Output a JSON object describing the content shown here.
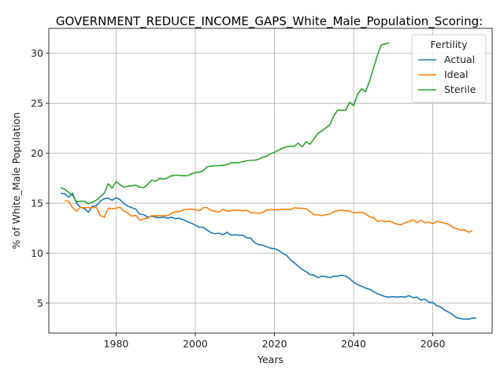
{
  "chart_data": {
    "type": "line",
    "title": "GOVERNMENT_REDUCE_INCOME_GAPS_White_Male_Population_Scoring:",
    "xlabel": "Years",
    "ylabel": "% of White_Male Population",
    "xlim": [
      1963,
      2075
    ],
    "ylim": [
      2,
      32.5
    ],
    "xticks": [
      1980,
      2000,
      2020,
      2040,
      2060
    ],
    "yticks": [
      5,
      10,
      15,
      20,
      25,
      30
    ],
    "grid": true,
    "legend": {
      "title": "Fertility",
      "position": "top-right"
    },
    "series": [
      {
        "name": "Actual",
        "color": "#1f77b4",
        "points": [
          [
            1966,
            16.0
          ],
          [
            1967,
            15.95
          ],
          [
            1968,
            15.6
          ],
          [
            1969,
            16.0
          ],
          [
            1970,
            15.0
          ],
          [
            1971,
            14.6
          ],
          [
            1972,
            14.45
          ],
          [
            1973,
            14.1
          ],
          [
            1974,
            14.7
          ],
          [
            1975,
            14.75
          ],
          [
            1976,
            15.2
          ],
          [
            1977,
            15.45
          ],
          [
            1978,
            15.5
          ],
          [
            1979,
            15.3
          ],
          [
            1980,
            15.55
          ],
          [
            1981,
            15.35
          ],
          [
            1982,
            14.95
          ],
          [
            1983,
            14.7
          ],
          [
            1984,
            14.55
          ],
          [
            1985,
            14.4
          ],
          [
            1986,
            13.9
          ],
          [
            1987,
            13.85
          ],
          [
            1988,
            13.6
          ],
          [
            1989,
            13.7
          ],
          [
            1990,
            13.6
          ],
          [
            1991,
            13.55
          ],
          [
            1992,
            13.6
          ],
          [
            1993,
            13.5
          ],
          [
            1994,
            13.6
          ],
          [
            1995,
            13.45
          ],
          [
            1996,
            13.5
          ],
          [
            1997,
            13.35
          ],
          [
            1998,
            13.15
          ],
          [
            1999,
            13.0
          ],
          [
            2000,
            12.8
          ],
          [
            2001,
            12.6
          ],
          [
            2002,
            12.6
          ],
          [
            2003,
            12.3
          ],
          [
            2004,
            12.05
          ],
          [
            2005,
            11.95
          ],
          [
            2006,
            12.0
          ],
          [
            2007,
            11.85
          ],
          [
            2008,
            12.1
          ],
          [
            2009,
            11.8
          ],
          [
            2010,
            11.85
          ],
          [
            2011,
            11.8
          ],
          [
            2012,
            11.8
          ],
          [
            2013,
            11.55
          ],
          [
            2014,
            11.5
          ],
          [
            2015,
            11.05
          ],
          [
            2016,
            10.85
          ],
          [
            2017,
            10.8
          ],
          [
            2018,
            10.65
          ],
          [
            2019,
            10.5
          ],
          [
            2020,
            10.45
          ],
          [
            2021,
            10.3
          ],
          [
            2022,
            10.0
          ],
          [
            2023,
            9.8
          ],
          [
            2024,
            9.35
          ],
          [
            2025,
            9.05
          ],
          [
            2026,
            8.7
          ],
          [
            2027,
            8.35
          ],
          [
            2028,
            8.15
          ],
          [
            2029,
            7.85
          ],
          [
            2030,
            7.8
          ],
          [
            2031,
            7.55
          ],
          [
            2032,
            7.7
          ],
          [
            2033,
            7.65
          ],
          [
            2034,
            7.55
          ],
          [
            2035,
            7.7
          ],
          [
            2036,
            7.7
          ],
          [
            2037,
            7.8
          ],
          [
            2038,
            7.7
          ],
          [
            2039,
            7.45
          ],
          [
            2040,
            7.1
          ],
          [
            2041,
            6.85
          ],
          [
            2042,
            6.7
          ],
          [
            2043,
            6.5
          ],
          [
            2044,
            6.4
          ],
          [
            2045,
            6.15
          ],
          [
            2046,
            5.95
          ],
          [
            2047,
            5.8
          ],
          [
            2048,
            5.65
          ],
          [
            2049,
            5.6
          ],
          [
            2050,
            5.65
          ],
          [
            2051,
            5.6
          ],
          [
            2052,
            5.65
          ],
          [
            2053,
            5.6
          ],
          [
            2054,
            5.75
          ],
          [
            2055,
            5.55
          ],
          [
            2056,
            5.6
          ],
          [
            2057,
            5.3
          ],
          [
            2058,
            5.4
          ],
          [
            2059,
            5.1
          ],
          [
            2060,
            5.05
          ],
          [
            2061,
            4.75
          ],
          [
            2062,
            4.6
          ],
          [
            2063,
            4.3
          ],
          [
            2064,
            4.1
          ],
          [
            2065,
            3.85
          ],
          [
            2066,
            3.55
          ],
          [
            2067,
            3.45
          ],
          [
            2068,
            3.4
          ],
          [
            2069,
            3.4
          ],
          [
            2070,
            3.5
          ],
          [
            2071,
            3.5
          ]
        ]
      },
      {
        "name": "Ideal",
        "color": "#ff7f0e",
        "points": [
          [
            1967,
            15.25
          ],
          [
            1968,
            15.2
          ],
          [
            1969,
            14.55
          ],
          [
            1970,
            14.2
          ],
          [
            1971,
            14.6
          ],
          [
            1972,
            14.55
          ],
          [
            1973,
            14.55
          ],
          [
            1974,
            14.55
          ],
          [
            1975,
            14.6
          ],
          [
            1976,
            13.75
          ],
          [
            1977,
            13.6
          ],
          [
            1978,
            14.5
          ],
          [
            1979,
            14.45
          ],
          [
            1980,
            14.5
          ],
          [
            1981,
            14.6
          ],
          [
            1982,
            14.2
          ],
          [
            1983,
            14.0
          ],
          [
            1984,
            13.7
          ],
          [
            1985,
            13.8
          ],
          [
            1986,
            13.3
          ],
          [
            1987,
            13.45
          ],
          [
            1988,
            13.5
          ],
          [
            1989,
            13.75
          ],
          [
            1990,
            13.75
          ],
          [
            1991,
            13.75
          ],
          [
            1992,
            13.75
          ],
          [
            1993,
            13.75
          ],
          [
            1994,
            14.0
          ],
          [
            1995,
            14.15
          ],
          [
            1996,
            14.15
          ],
          [
            1997,
            14.35
          ],
          [
            1998,
            14.4
          ],
          [
            1999,
            14.4
          ],
          [
            2000,
            14.35
          ],
          [
            2001,
            14.25
          ],
          [
            2002,
            14.55
          ],
          [
            2003,
            14.55
          ],
          [
            2004,
            14.3
          ],
          [
            2005,
            14.2
          ],
          [
            2006,
            14.1
          ],
          [
            2007,
            14.4
          ],
          [
            2008,
            14.2
          ],
          [
            2009,
            14.25
          ],
          [
            2010,
            14.3
          ],
          [
            2011,
            14.3
          ],
          [
            2012,
            14.25
          ],
          [
            2013,
            14.3
          ],
          [
            2014,
            14.05
          ],
          [
            2015,
            14.05
          ],
          [
            2016,
            14.0
          ],
          [
            2017,
            14.05
          ],
          [
            2018,
            14.35
          ],
          [
            2019,
            14.35
          ],
          [
            2020,
            14.35
          ],
          [
            2021,
            14.35
          ],
          [
            2022,
            14.4
          ],
          [
            2023,
            14.4
          ],
          [
            2024,
            14.35
          ],
          [
            2025,
            14.55
          ],
          [
            2026,
            14.5
          ],
          [
            2027,
            14.5
          ],
          [
            2028,
            14.45
          ],
          [
            2029,
            14.15
          ],
          [
            2030,
            13.85
          ],
          [
            2031,
            13.85
          ],
          [
            2032,
            13.75
          ],
          [
            2033,
            13.85
          ],
          [
            2034,
            13.9
          ],
          [
            2035,
            14.15
          ],
          [
            2036,
            14.25
          ],
          [
            2037,
            14.3
          ],
          [
            2038,
            14.25
          ],
          [
            2039,
            14.2
          ],
          [
            2040,
            14.05
          ],
          [
            2041,
            14.05
          ],
          [
            2042,
            14.1
          ],
          [
            2043,
            13.95
          ],
          [
            2044,
            13.65
          ],
          [
            2045,
            13.55
          ],
          [
            2046,
            13.2
          ],
          [
            2047,
            13.25
          ],
          [
            2048,
            13.15
          ],
          [
            2049,
            13.2
          ],
          [
            2050,
            13.05
          ],
          [
            2051,
            12.9
          ],
          [
            2052,
            12.85
          ],
          [
            2053,
            13.05
          ],
          [
            2054,
            13.15
          ],
          [
            2055,
            13.35
          ],
          [
            2056,
            13.05
          ],
          [
            2057,
            13.3
          ],
          [
            2058,
            13.05
          ],
          [
            2059,
            13.1
          ],
          [
            2060,
            12.95
          ],
          [
            2061,
            13.2
          ],
          [
            2062,
            13.1
          ],
          [
            2063,
            13.0
          ],
          [
            2064,
            12.9
          ],
          [
            2065,
            12.6
          ],
          [
            2066,
            12.45
          ],
          [
            2067,
            12.3
          ],
          [
            2068,
            12.35
          ],
          [
            2069,
            12.1
          ],
          [
            2070,
            12.25
          ]
        ]
      },
      {
        "name": "Sterile",
        "color": "#2ca02c",
        "points": [
          [
            1966,
            16.55
          ],
          [
            1967,
            16.4
          ],
          [
            1968,
            16.1
          ],
          [
            1969,
            15.8
          ],
          [
            1970,
            15.15
          ],
          [
            1971,
            15.2
          ],
          [
            1972,
            15.2
          ],
          [
            1973,
            14.95
          ],
          [
            1974,
            15.1
          ],
          [
            1975,
            15.3
          ],
          [
            1976,
            15.65
          ],
          [
            1977,
            16.0
          ],
          [
            1978,
            16.95
          ],
          [
            1979,
            16.5
          ],
          [
            1980,
            17.15
          ],
          [
            1981,
            16.85
          ],
          [
            1982,
            16.6
          ],
          [
            1983,
            16.7
          ],
          [
            1984,
            16.75
          ],
          [
            1985,
            16.8
          ],
          [
            1986,
            16.6
          ],
          [
            1987,
            16.55
          ],
          [
            1988,
            16.9
          ],
          [
            1989,
            17.3
          ],
          [
            1990,
            17.2
          ],
          [
            1991,
            17.5
          ],
          [
            1992,
            17.4
          ],
          [
            1993,
            17.55
          ],
          [
            1994,
            17.75
          ],
          [
            1995,
            17.8
          ],
          [
            1996,
            17.8
          ],
          [
            1997,
            17.75
          ],
          [
            1998,
            17.75
          ],
          [
            1999,
            17.95
          ],
          [
            2000,
            18.05
          ],
          [
            2001,
            18.1
          ],
          [
            2002,
            18.25
          ],
          [
            2003,
            18.65
          ],
          [
            2004,
            18.7
          ],
          [
            2005,
            18.75
          ],
          [
            2006,
            18.75
          ],
          [
            2007,
            18.8
          ],
          [
            2008,
            18.85
          ],
          [
            2009,
            19.05
          ],
          [
            2010,
            19.05
          ],
          [
            2011,
            19.05
          ],
          [
            2012,
            19.15
          ],
          [
            2013,
            19.25
          ],
          [
            2014,
            19.3
          ],
          [
            2015,
            19.3
          ],
          [
            2016,
            19.4
          ],
          [
            2017,
            19.6
          ],
          [
            2018,
            19.7
          ],
          [
            2019,
            19.95
          ],
          [
            2020,
            20.1
          ],
          [
            2021,
            20.3
          ],
          [
            2022,
            20.5
          ],
          [
            2023,
            20.65
          ],
          [
            2024,
            20.7
          ],
          [
            2025,
            20.7
          ],
          [
            2026,
            21.0
          ],
          [
            2027,
            20.65
          ],
          [
            2028,
            21.15
          ],
          [
            2029,
            20.9
          ],
          [
            2030,
            21.45
          ],
          [
            2031,
            22.0
          ],
          [
            2032,
            22.25
          ],
          [
            2033,
            22.55
          ],
          [
            2034,
            22.85
          ],
          [
            2035,
            23.75
          ],
          [
            2036,
            24.35
          ],
          [
            2037,
            24.3
          ],
          [
            2038,
            24.3
          ],
          [
            2039,
            25.1
          ],
          [
            2040,
            24.75
          ],
          [
            2041,
            25.9
          ],
          [
            2042,
            26.45
          ],
          [
            2043,
            26.15
          ],
          [
            2044,
            27.2
          ],
          [
            2045,
            28.5
          ],
          [
            2046,
            29.8
          ],
          [
            2047,
            30.85
          ],
          [
            2048,
            30.95
          ],
          [
            2049,
            31.05
          ]
        ]
      }
    ]
  }
}
